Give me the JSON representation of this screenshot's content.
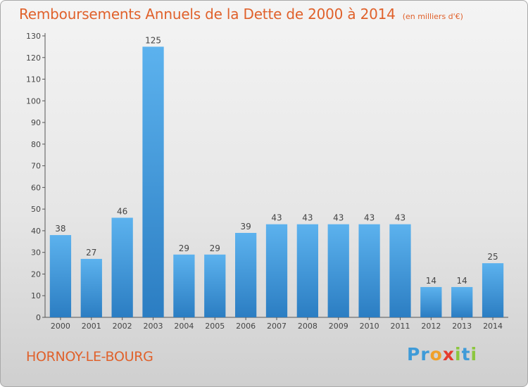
{
  "chart_data": {
    "type": "bar",
    "title": "Remboursements Annuels de la Dette de 2000 à 2014",
    "unit": "(en milliers d'€)",
    "categories": [
      "2000",
      "2001",
      "2002",
      "2003",
      "2004",
      "2005",
      "2006",
      "2007",
      "2008",
      "2009",
      "2010",
      "2011",
      "2012",
      "2013",
      "2014"
    ],
    "values": [
      38,
      27,
      46,
      125,
      29,
      29,
      39,
      43,
      43,
      43,
      43,
      43,
      14,
      14,
      25
    ],
    "ylim": [
      0,
      130
    ],
    "yticks": [
      0,
      10,
      20,
      30,
      40,
      50,
      60,
      70,
      80,
      90,
      100,
      110,
      120,
      130
    ],
    "grid": false,
    "bar_color": "#4a9fe0"
  },
  "footer": {
    "commune": "HORNOY-LE-BOURG",
    "logo_letters": [
      "P",
      "r",
      "o",
      "x",
      "i",
      "t",
      "i"
    ],
    "logo_colors": [
      "#3f9bd8",
      "#3f9bd8",
      "#f0a02a",
      "#e53a2e",
      "#8cc63f",
      "#3f9bd8",
      "#8cc63f"
    ]
  }
}
